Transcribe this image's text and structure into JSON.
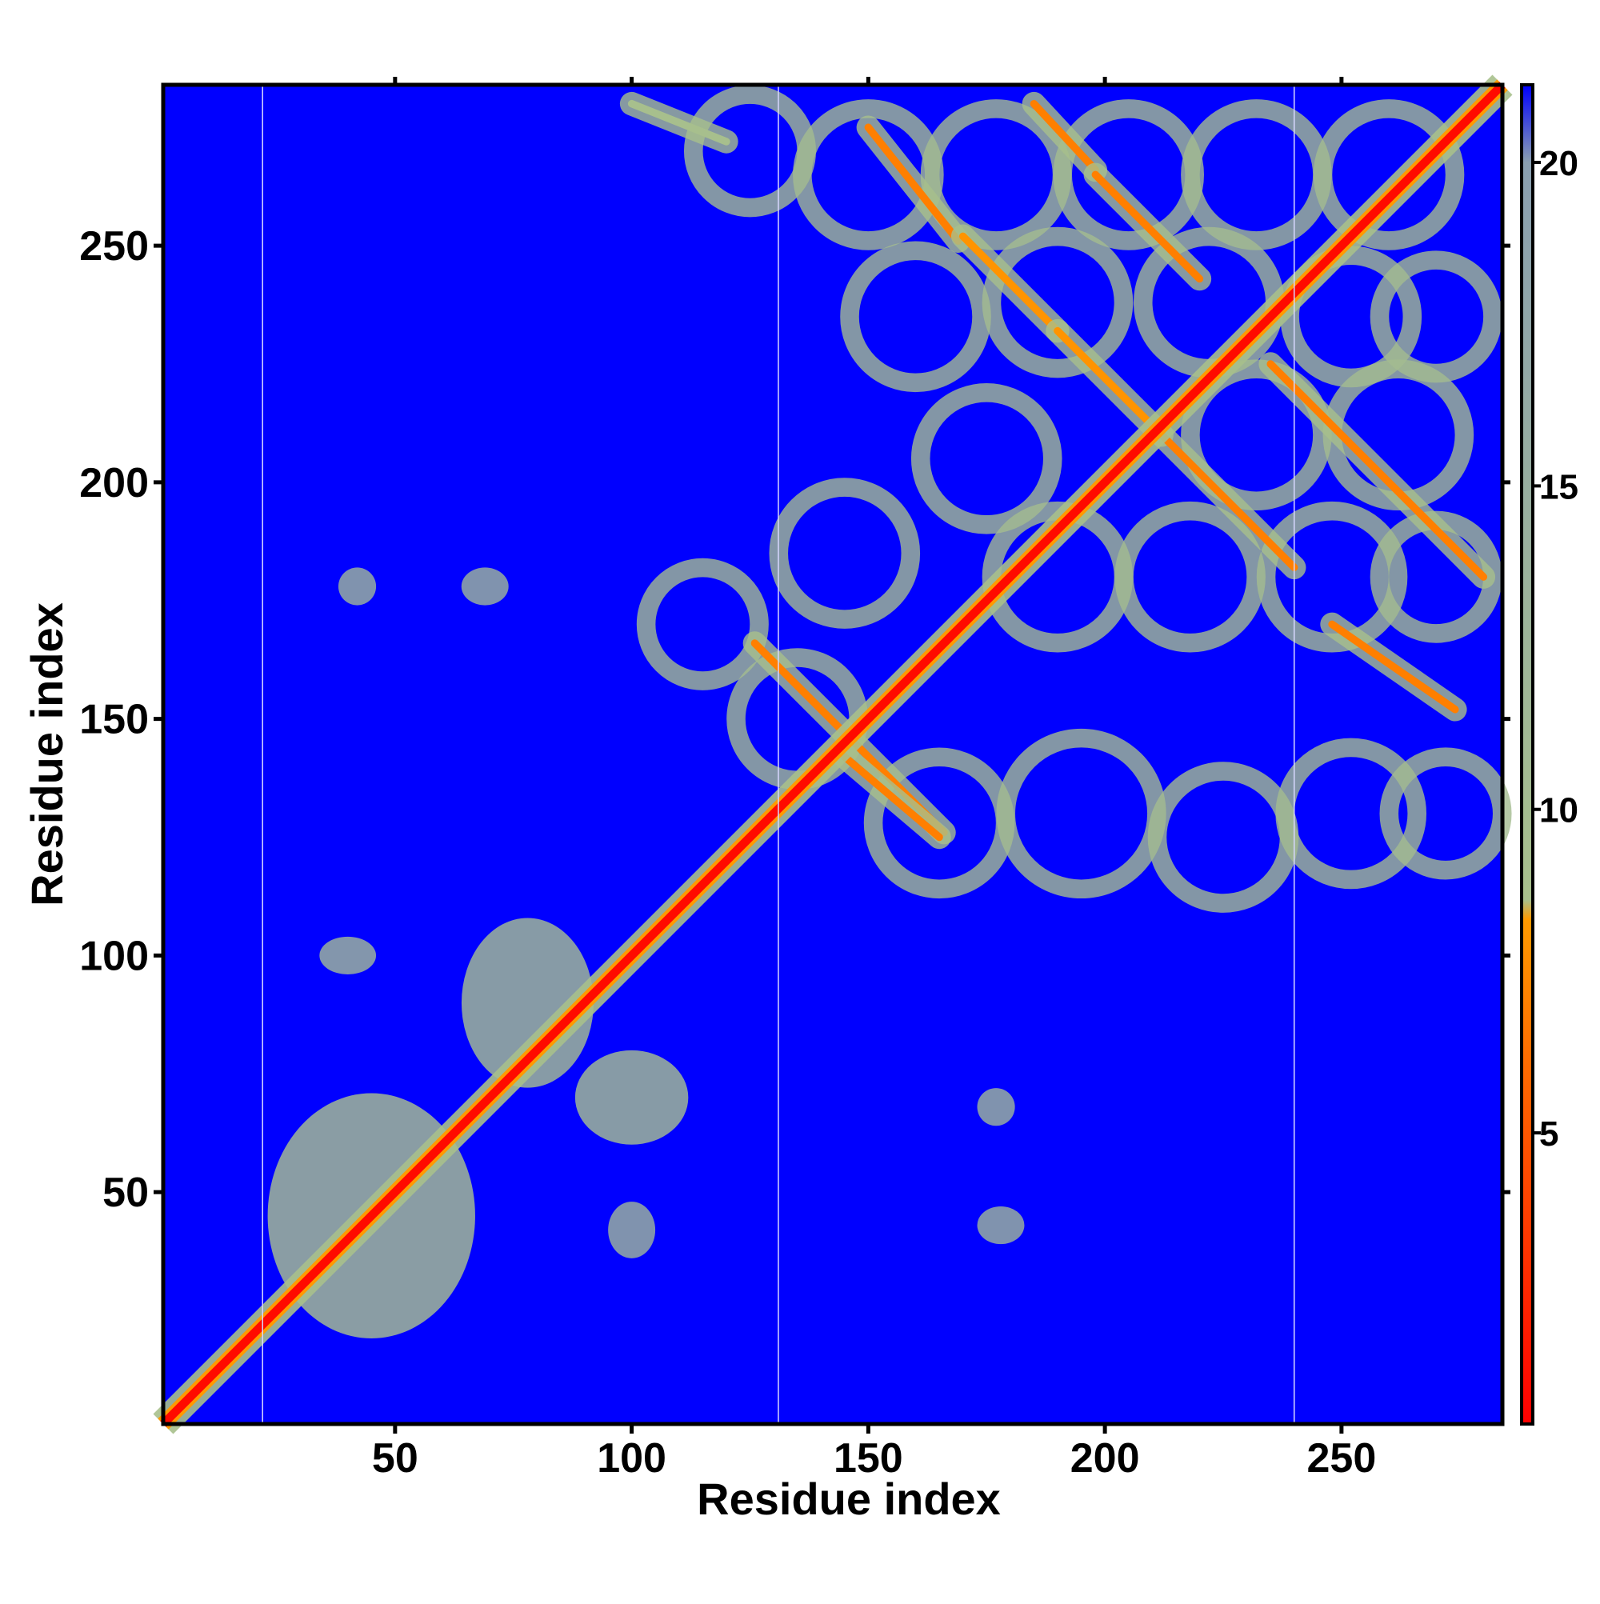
{
  "chart_data": {
    "type": "heatmap",
    "title": "",
    "xlabel": "Residue index",
    "ylabel": "Residue index",
    "xlim": [
      1,
      284
    ],
    "ylim": [
      1,
      284
    ],
    "x_ticks": [
      50,
      100,
      150,
      200,
      250
    ],
    "y_ticks": [
      50,
      100,
      150,
      200,
      250
    ],
    "x_tick_labels": [
      "50",
      "100",
      "150",
      "200",
      "250"
    ],
    "y_tick_labels": [
      "50",
      "100",
      "150",
      "200",
      "250"
    ],
    "colorbar": {
      "range": [
        0.5,
        21.2
      ],
      "ticks": [
        5,
        10,
        15,
        20
      ],
      "tick_labels": [
        "5",
        "10",
        "15",
        "20"
      ],
      "colors": [
        "#ff0000",
        "#ff6a00",
        "#ff9a00",
        "#a8c08c",
        "#8a9fb0",
        "#0000ff"
      ],
      "color_stops": [
        0.5,
        6.0,
        8.3,
        8.6,
        20.0,
        21.2
      ]
    },
    "background_color": "#0000ff",
    "reference_lines_x": [
      22,
      131,
      240
    ],
    "diagonal": {
      "from": 1,
      "to": 284,
      "value": 1.0
    },
    "contact_bands": [
      {
        "kind": "antiparallel",
        "from": [
          126,
          166
        ],
        "to": [
          166,
          126
        ],
        "value": 7
      },
      {
        "kind": "antiparallel",
        "from": [
          150,
          275
        ],
        "to": [
          169,
          251
        ],
        "value": 7
      },
      {
        "kind": "antiparallel",
        "from": [
          185,
          280
        ],
        "to": [
          198,
          266
        ],
        "value": 7
      },
      {
        "kind": "antiparallel",
        "from": [
          198,
          265
        ],
        "to": [
          220,
          243
        ],
        "value": 7
      },
      {
        "kind": "antiparallel",
        "from": [
          170,
          252
        ],
        "to": [
          190,
          232
        ],
        "value": 8
      },
      {
        "kind": "antiparallel",
        "from": [
          190,
          232
        ],
        "to": [
          212,
          210
        ],
        "value": 8
      },
      {
        "kind": "antiparallel",
        "from": [
          212,
          210
        ],
        "to": [
          240,
          182
        ],
        "value": 7
      },
      {
        "kind": "antiparallel",
        "from": [
          235,
          225
        ],
        "to": [
          280,
          180
        ],
        "value": 7
      },
      {
        "kind": "antiparallel",
        "from": [
          248,
          170
        ],
        "to": [
          274,
          152
        ],
        "value": 7
      },
      {
        "kind": "antiparallel",
        "from": [
          145,
          142
        ],
        "to": [
          165,
          125
        ],
        "value": 7
      },
      {
        "kind": "antiparallel",
        "from": [
          100,
          280
        ],
        "to": [
          120,
          272
        ],
        "value": 9
      }
    ],
    "contact_rings": [
      {
        "cx": 150,
        "cy": 265,
        "r": 14,
        "value": 10
      },
      {
        "cx": 177,
        "cy": 265,
        "r": 14,
        "value": 10
      },
      {
        "cx": 205,
        "cy": 265,
        "r": 14,
        "value": 10
      },
      {
        "cx": 232,
        "cy": 265,
        "r": 14,
        "value": 10
      },
      {
        "cx": 260,
        "cy": 265,
        "r": 14,
        "value": 10
      },
      {
        "cx": 160,
        "cy": 235,
        "r": 14,
        "value": 10
      },
      {
        "cx": 190,
        "cy": 238,
        "r": 14,
        "value": 10
      },
      {
        "cx": 222,
        "cy": 238,
        "r": 14,
        "value": 10
      },
      {
        "cx": 252,
        "cy": 235,
        "r": 13,
        "value": 10
      },
      {
        "cx": 270,
        "cy": 235,
        "r": 12,
        "value": 10
      },
      {
        "cx": 175,
        "cy": 205,
        "r": 14,
        "value": 10
      },
      {
        "cx": 232,
        "cy": 210,
        "r": 14,
        "value": 10
      },
      {
        "cx": 262,
        "cy": 210,
        "r": 14,
        "value": 10
      },
      {
        "cx": 145,
        "cy": 185,
        "r": 14,
        "value": 10
      },
      {
        "cx": 190,
        "cy": 180,
        "r": 14,
        "value": 10
      },
      {
        "cx": 218,
        "cy": 180,
        "r": 14,
        "value": 10
      },
      {
        "cx": 248,
        "cy": 180,
        "r": 14,
        "value": 10
      },
      {
        "cx": 270,
        "cy": 180,
        "r": 12,
        "value": 10
      },
      {
        "cx": 135,
        "cy": 150,
        "r": 13,
        "value": 10
      },
      {
        "cx": 165,
        "cy": 128,
        "r": 14,
        "value": 10
      },
      {
        "cx": 195,
        "cy": 130,
        "r": 16,
        "value": 10
      },
      {
        "cx": 225,
        "cy": 125,
        "r": 14,
        "value": 10
      },
      {
        "cx": 252,
        "cy": 130,
        "r": 14,
        "value": 10
      },
      {
        "cx": 272,
        "cy": 130,
        "r": 12,
        "value": 10
      },
      {
        "cx": 115,
        "cy": 170,
        "r": 12,
        "value": 10
      },
      {
        "cx": 125,
        "cy": 270,
        "r": 12,
        "value": 10
      }
    ],
    "contact_patches": [
      {
        "cx": 45,
        "cy": 45,
        "rx": 22,
        "ry": 26,
        "value": 11
      },
      {
        "cx": 78,
        "cy": 90,
        "rx": 14,
        "ry": 18,
        "value": 12
      },
      {
        "cx": 100,
        "cy": 70,
        "rx": 12,
        "ry": 10,
        "value": 12
      },
      {
        "cx": 40,
        "cy": 100,
        "rx": 6,
        "ry": 4,
        "value": 14
      },
      {
        "cx": 42,
        "cy": 178,
        "rx": 4,
        "ry": 4,
        "value": 15
      },
      {
        "cx": 69,
        "cy": 178,
        "rx": 5,
        "ry": 4,
        "value": 15
      },
      {
        "cx": 100,
        "cy": 42,
        "rx": 5,
        "ry": 6,
        "value": 15
      },
      {
        "cx": 177,
        "cy": 68,
        "rx": 4,
        "ry": 4,
        "value": 15
      },
      {
        "cx": 178,
        "cy": 43,
        "rx": 5,
        "ry": 4,
        "value": 15
      }
    ]
  }
}
